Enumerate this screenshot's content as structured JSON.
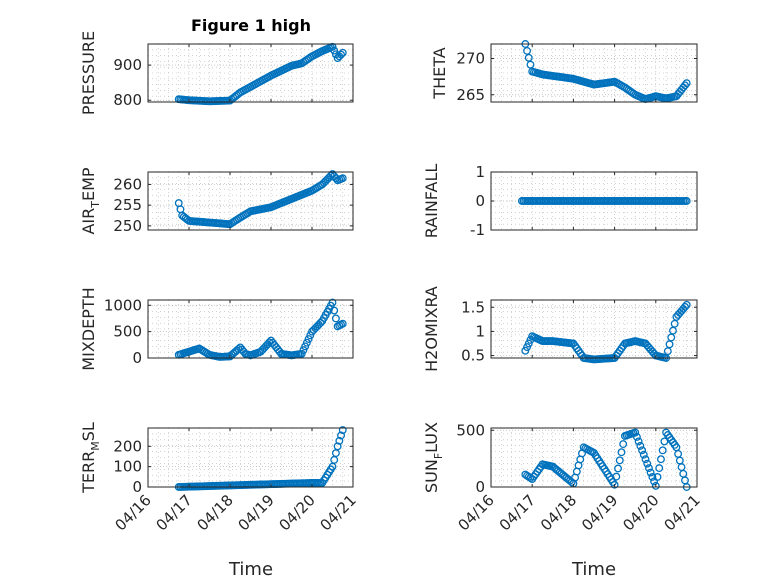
{
  "figure": {
    "title": "Figure 1 high",
    "xlabel": "Time",
    "xticks": [
      "04/16",
      "04/17",
      "04/18",
      "04/19",
      "04/20",
      "04/21"
    ],
    "marker_color": "#0072BD",
    "axes_color": "#262626",
    "grid_color": "#b8b8b8"
  },
  "chart_data": [
    {
      "type": "scatter",
      "ylabel": "PRESSURE",
      "ylabel_parts": [
        "PRESSURE"
      ],
      "ylim": [
        795,
        960
      ],
      "yticks": [
        800,
        900
      ],
      "grid": true,
      "title": "Figure 1 high",
      "x": [
        "04/16 18:00",
        "04/17 00:00",
        "04/17 12:00",
        "04/18 00:00",
        "04/18 06:00",
        "04/18 12:00",
        "04/19 00:00",
        "04/19 12:00",
        "04/19 18:00",
        "04/20 00:00",
        "04/20 06:00",
        "04/20 12:00",
        "04/20 15:00",
        "04/20 18:00"
      ],
      "y": [
        803,
        800,
        797,
        799,
        822,
        838,
        870,
        898,
        905,
        925,
        940,
        952,
        920,
        935
      ]
    },
    {
      "type": "scatter",
      "ylabel": "THETA",
      "ylabel_parts": [
        "THETA"
      ],
      "ylim": [
        264,
        272
      ],
      "yticks": [
        265,
        270
      ],
      "grid": true,
      "x": [
        "04/16 20:00",
        "04/17 00:00",
        "04/17 06:00",
        "04/17 12:00",
        "04/18 00:00",
        "04/18 12:00",
        "04/19 00:00",
        "04/19 06:00",
        "04/19 12:00",
        "04/19 18:00",
        "04/20 00:00",
        "04/20 06:00",
        "04/20 12:00",
        "04/20 18:00"
      ],
      "y": [
        272,
        268.2,
        267.8,
        267.6,
        267.2,
        266.4,
        266.8,
        266.0,
        265.0,
        264.4,
        264.8,
        264.5,
        264.8,
        266.6
      ]
    },
    {
      "type": "scatter",
      "ylabel": "AIR_TEMP",
      "ylabel_parts": [
        "AIR",
        "T",
        "EMP"
      ],
      "ylim": [
        249,
        263
      ],
      "yticks": [
        250,
        255,
        260
      ],
      "grid": true,
      "x": [
        "04/16 18:00",
        "04/16 20:00",
        "04/17 00:00",
        "04/17 12:00",
        "04/18 00:00",
        "04/18 06:00",
        "04/18 12:00",
        "04/19 00:00",
        "04/19 12:00",
        "04/20 00:00",
        "04/20 06:00",
        "04/20 12:00",
        "04/20 15:00",
        "04/20 18:00"
      ],
      "y": [
        255.5,
        252.5,
        251.2,
        250.8,
        250.4,
        252.0,
        253.5,
        254.5,
        256.5,
        258.5,
        260.0,
        262.5,
        261.0,
        261.5
      ]
    },
    {
      "type": "scatter",
      "ylabel": "RAINFALL",
      "ylabel_parts": [
        "RAINFALL"
      ],
      "ylim": [
        -1,
        1
      ],
      "yticks": [
        -1,
        0,
        1
      ],
      "grid": true,
      "x": [
        "04/16 18:00",
        "04/20 18:00"
      ],
      "y": [
        0,
        0
      ]
    },
    {
      "type": "scatter",
      "ylabel": "MIXDEPTH",
      "ylabel_parts": [
        "MIXDEPTH"
      ],
      "ylim": [
        0,
        1100
      ],
      "yticks": [
        0,
        500,
        1000
      ],
      "grid": true,
      "x": [
        "04/16 18:00",
        "04/17 00:00",
        "04/17 06:00",
        "04/17 12:00",
        "04/17 18:00",
        "04/18 00:00",
        "04/18 06:00",
        "04/18 09:00",
        "04/18 12:00",
        "04/18 18:00",
        "04/19 00:00",
        "04/19 06:00",
        "04/19 12:00",
        "04/19 18:00",
        "04/20 00:00",
        "04/20 06:00",
        "04/20 12:00",
        "04/20 15:00",
        "04/20 18:00"
      ],
      "y": [
        60,
        120,
        180,
        60,
        20,
        30,
        200,
        80,
        50,
        120,
        330,
        80,
        50,
        80,
        500,
        700,
        1050,
        600,
        650
      ]
    },
    {
      "type": "scatter",
      "ylabel": "H2OMIXRA",
      "ylabel_parts": [
        "H2OMIXRA"
      ],
      "ylim": [
        0.45,
        1.65
      ],
      "yticks": [
        0.5,
        1,
        1.5
      ],
      "grid": true,
      "x": [
        "04/16 20:00",
        "04/17 00:00",
        "04/17 06:00",
        "04/17 12:00",
        "04/18 00:00",
        "04/18 06:00",
        "04/18 12:00",
        "04/19 00:00",
        "04/19 06:00",
        "04/19 12:00",
        "04/19 18:00",
        "04/20 00:00",
        "04/20 06:00",
        "04/20 12:00",
        "04/20 18:00"
      ],
      "y": [
        0.6,
        0.9,
        0.8,
        0.8,
        0.75,
        0.45,
        0.42,
        0.45,
        0.75,
        0.8,
        0.75,
        0.5,
        0.45,
        1.3,
        1.55
      ]
    },
    {
      "type": "scatter",
      "ylabel": "TERR_MSL",
      "ylabel_parts": [
        "TERR",
        "M",
        "SL"
      ],
      "ylim": [
        0,
        290
      ],
      "yticks": [
        0,
        100,
        200
      ],
      "grid": true,
      "x": [
        "04/16 18:00",
        "04/20 00:00",
        "04/20 06:00",
        "04/20 12:00",
        "04/20 15:00",
        "04/20 18:00"
      ],
      "y": [
        0,
        20,
        20,
        100,
        200,
        280
      ]
    },
    {
      "type": "scatter",
      "ylabel": "SUN_FLUX",
      "ylabel_parts": [
        "SUN",
        "F",
        "LUX"
      ],
      "ylim": [
        0,
        520
      ],
      "yticks": [
        0,
        500
      ],
      "grid": true,
      "x": [
        "04/16 20:00",
        "04/17 00:00",
        "04/17 06:00",
        "04/17 12:00",
        "04/18 00:00",
        "04/18 06:00",
        "04/18 12:00",
        "04/19 00:00",
        "04/19 06:00",
        "04/19 12:00",
        "04/20 00:00",
        "04/20 06:00",
        "04/20 12:00",
        "04/20 18:00"
      ],
      "y": [
        110,
        70,
        200,
        180,
        30,
        350,
        300,
        20,
        450,
        480,
        10,
        480,
        350,
        0
      ]
    }
  ]
}
